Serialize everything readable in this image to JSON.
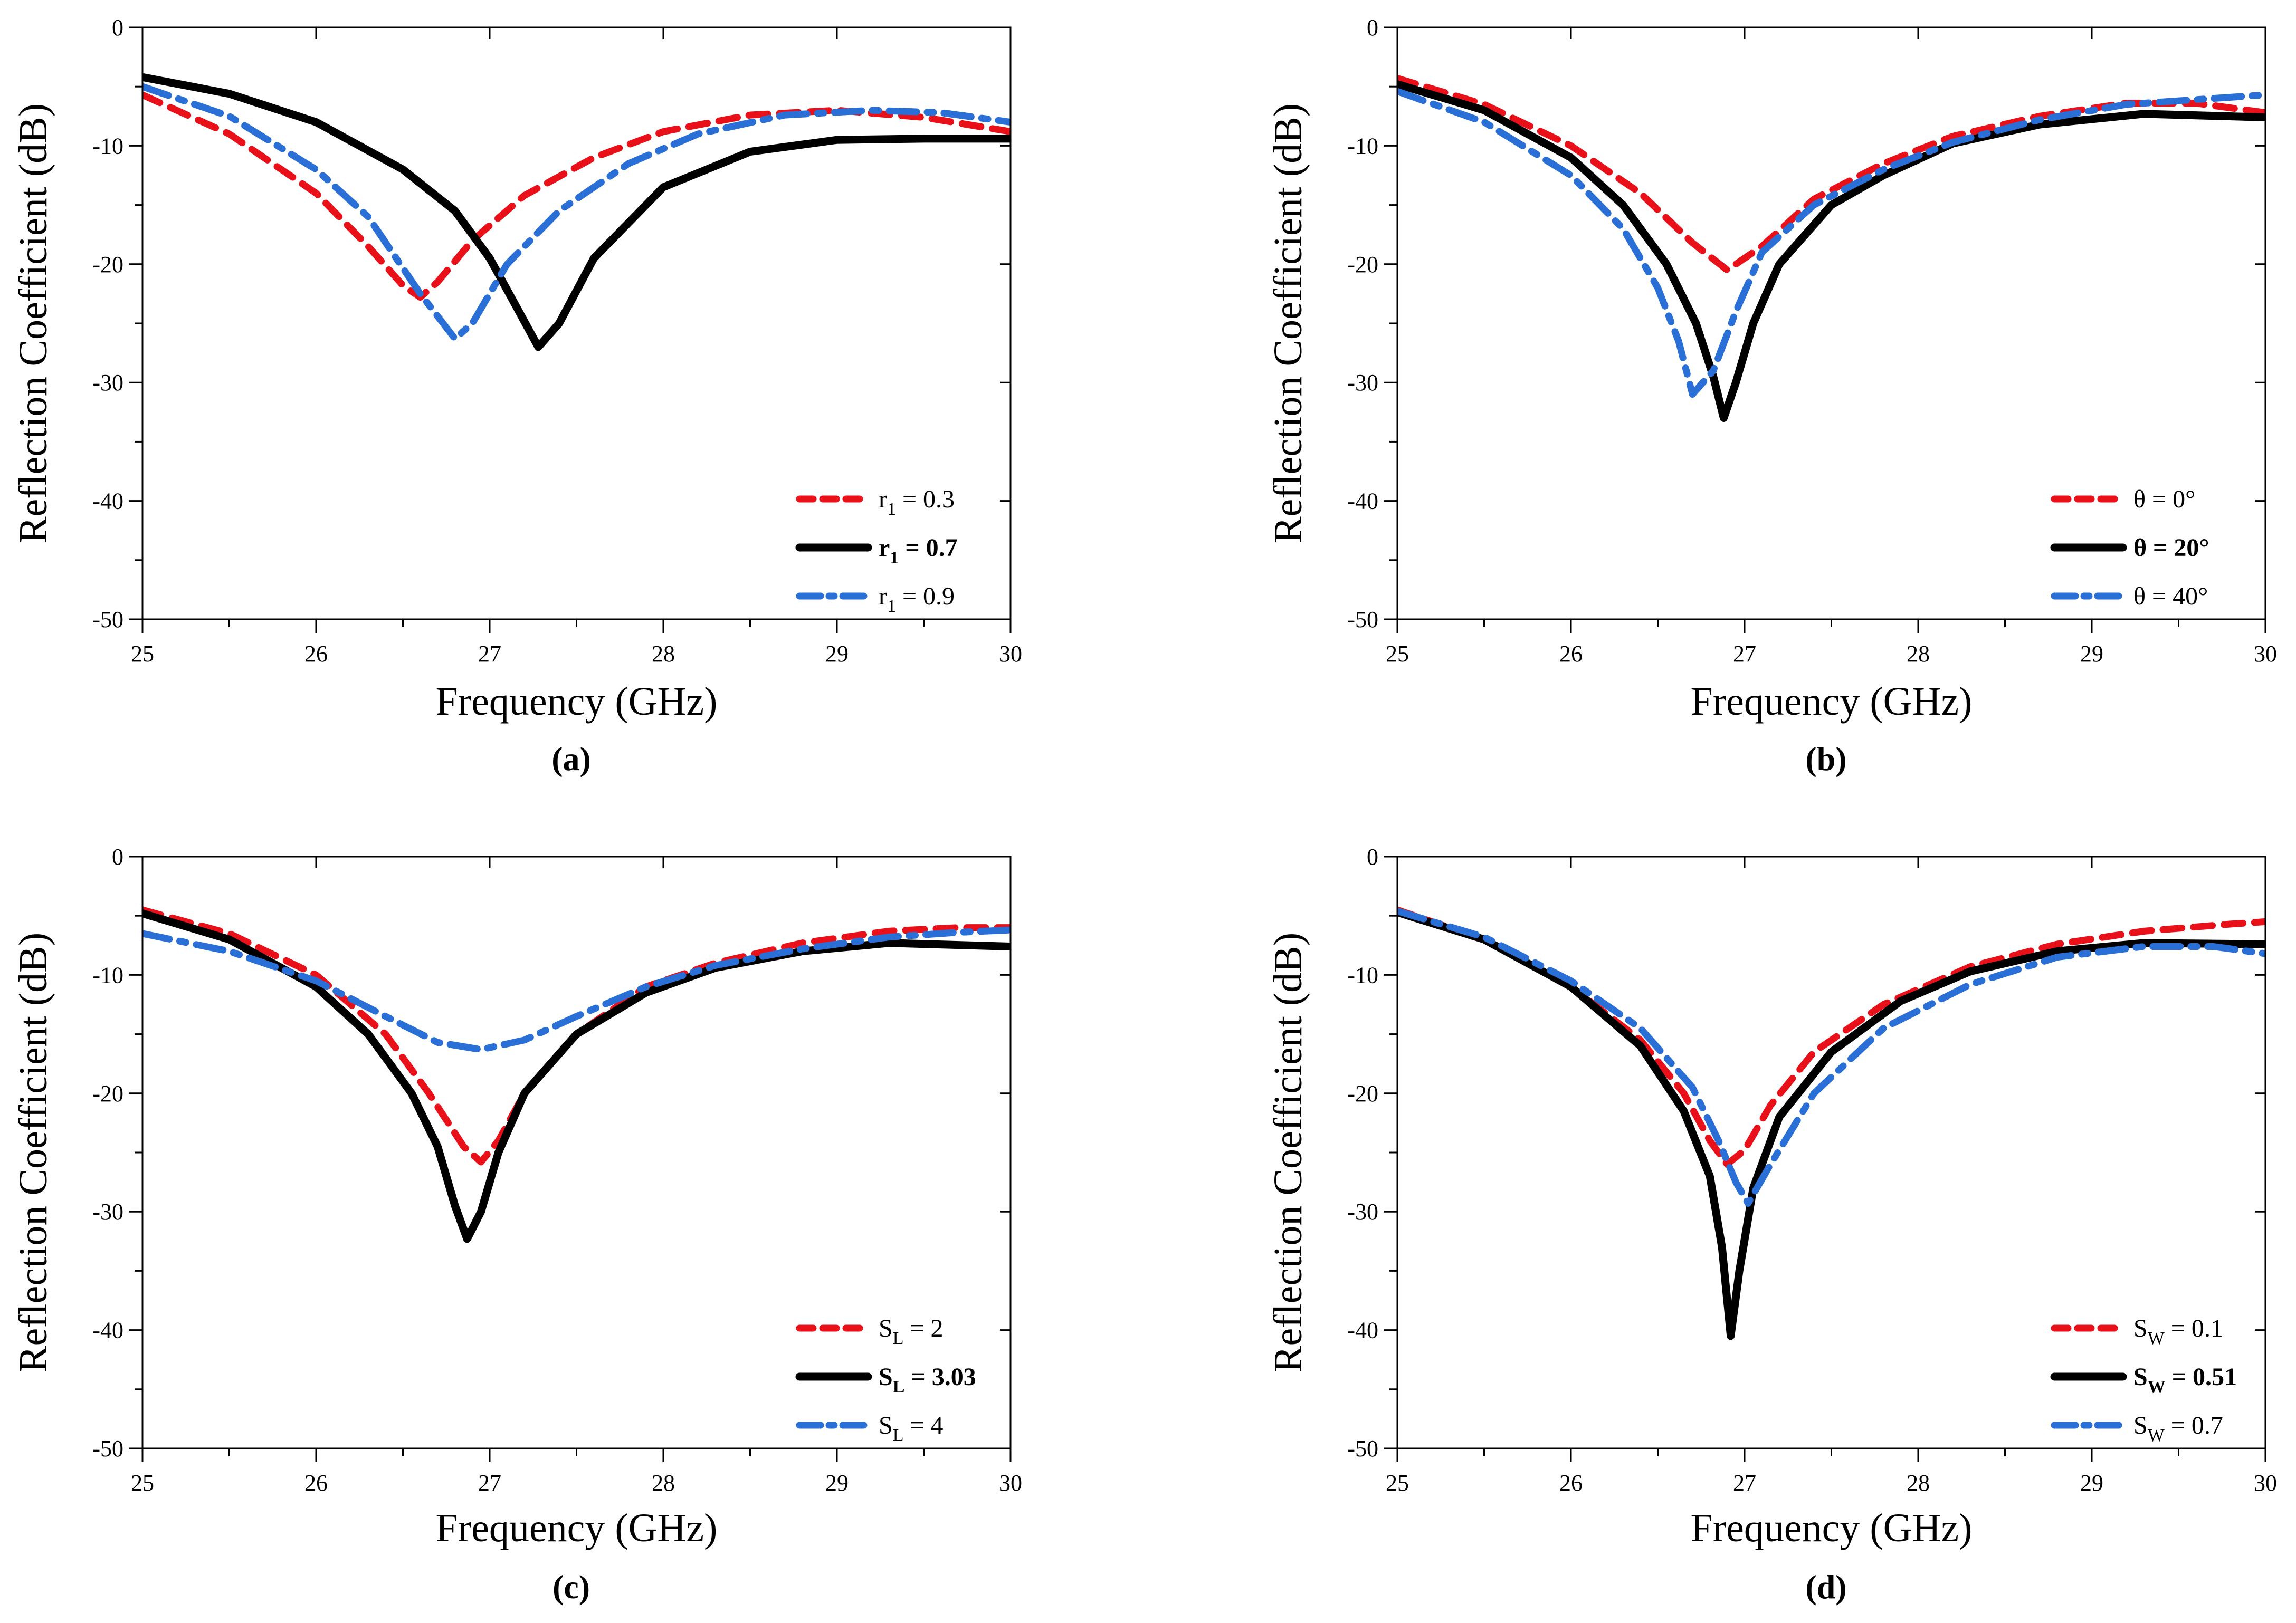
{
  "colors": {
    "red": "#e8111a",
    "black": "#000000",
    "blue": "#2a6fd6"
  },
  "chart_data": [
    {
      "type": "line",
      "panel": "(a)",
      "xlabel": "Frequency (GHz)",
      "ylabel": "Reflection Coefficient (dB)",
      "xlim": [
        25,
        30
      ],
      "ylim": [
        -50,
        0
      ],
      "xticks": [
        25,
        26,
        27,
        28,
        29,
        30
      ],
      "yticks": [
        0,
        -10,
        -20,
        -30,
        -40,
        -50
      ],
      "grid": false,
      "legend_position": "bottom-right",
      "series": [
        {
          "name": "r1 = 0.3",
          "base": "r",
          "sub": "1",
          "rest": " = 0.3",
          "bold": false,
          "color": "red",
          "dash": "dash",
          "x": [
            25,
            25.5,
            26,
            26.3,
            26.5,
            26.6,
            26.7,
            26.9,
            27.2,
            27.6,
            28,
            28.5,
            29,
            29.5,
            30
          ],
          "y": [
            -5.7,
            -9,
            -14,
            -18.5,
            -21.8,
            -22.8,
            -21.5,
            -18,
            -14.2,
            -11,
            -8.8,
            -7.4,
            -7,
            -7.6,
            -8.8
          ]
        },
        {
          "name": "r1 = 0.7",
          "base": "r",
          "sub": "1",
          "rest": " = 0.7",
          "bold": true,
          "color": "black",
          "dash": "solid",
          "x": [
            25,
            25.5,
            26,
            26.5,
            26.8,
            27,
            27.15,
            27.28,
            27.4,
            27.6,
            28,
            28.5,
            29,
            29.5,
            30
          ],
          "y": [
            -4.2,
            -5.6,
            -8,
            -12,
            -15.5,
            -19.5,
            -23.5,
            -27,
            -25,
            -19.5,
            -13.5,
            -10.5,
            -9.5,
            -9.4,
            -9.4
          ]
        },
        {
          "name": "r1 = 0.9",
          "base": "r",
          "sub": "1",
          "rest": " = 0.9",
          "bold": false,
          "color": "blue",
          "dash": "dashdot",
          "x": [
            25,
            25.5,
            26,
            26.3,
            26.6,
            26.8,
            26.9,
            27.1,
            27.4,
            27.8,
            28.2,
            28.7,
            29.2,
            29.6,
            30
          ],
          "y": [
            -5,
            -7.5,
            -12,
            -16,
            -22.5,
            -26.3,
            -25,
            -20,
            -15.5,
            -11.5,
            -9,
            -7.4,
            -7,
            -7.2,
            -8
          ]
        }
      ]
    },
    {
      "type": "line",
      "panel": "(b)",
      "xlabel": "Frequency (GHz)",
      "ylabel": "Reflection Coefficient (dB)",
      "xlim": [
        25,
        30
      ],
      "ylim": [
        -50,
        0
      ],
      "xticks": [
        25,
        26,
        27,
        28,
        29,
        30
      ],
      "yticks": [
        0,
        -10,
        -20,
        -30,
        -40,
        -50
      ],
      "grid": false,
      "legend_position": "bottom-right",
      "series": [
        {
          "name": "θ = 0°",
          "base": "θ = 0°",
          "sub": "",
          "rest": "",
          "bold": false,
          "color": "red",
          "dash": "dash",
          "x": [
            25,
            25.5,
            26,
            26.4,
            26.7,
            26.9,
            27.1,
            27.4,
            27.8,
            28.2,
            28.7,
            29.2,
            29.6,
            30
          ],
          "y": [
            -4.3,
            -6.5,
            -10,
            -14,
            -18.2,
            -20.5,
            -18.5,
            -14.5,
            -11.5,
            -9.2,
            -7.5,
            -6.4,
            -6.4,
            -7.2
          ]
        },
        {
          "name": "θ = 20°",
          "base": "θ = 20°",
          "sub": "",
          "rest": "",
          "bold": true,
          "color": "black",
          "dash": "solid",
          "x": [
            25,
            25.5,
            26,
            26.3,
            26.55,
            26.72,
            26.82,
            26.88,
            26.95,
            27.05,
            27.2,
            27.5,
            27.8,
            28.2,
            28.7,
            29.3,
            30
          ],
          "y": [
            -4.8,
            -7,
            -11,
            -15,
            -20,
            -25,
            -29.5,
            -33,
            -30,
            -25,
            -20,
            -15,
            -12.5,
            -9.8,
            -8.2,
            -7.3,
            -7.6
          ]
        },
        {
          "name": "θ = 40°",
          "base": "θ = 40°",
          "sub": "",
          "rest": "",
          "bold": false,
          "color": "blue",
          "dash": "dashdot",
          "x": [
            25,
            25.5,
            26,
            26.3,
            26.5,
            26.62,
            26.7,
            26.82,
            26.95,
            27.1,
            27.4,
            27.8,
            28.2,
            28.7,
            29.2,
            29.6,
            30
          ],
          "y": [
            -5.4,
            -8,
            -12.5,
            -17,
            -22,
            -26.5,
            -31,
            -29,
            -24,
            -19,
            -15,
            -12,
            -9.7,
            -7.8,
            -6.5,
            -6.1,
            -5.7
          ]
        }
      ]
    },
    {
      "type": "line",
      "panel": "(c)",
      "xlabel": "Frequency (GHz)",
      "ylabel": "Reflection Coefficient (dB)",
      "xlim": [
        25,
        30
      ],
      "ylim": [
        -50,
        0
      ],
      "xticks": [
        25,
        26,
        27,
        28,
        29,
        30
      ],
      "yticks": [
        0,
        -10,
        -20,
        -30,
        -40,
        -50
      ],
      "grid": false,
      "legend_position": "bottom-right",
      "series": [
        {
          "name": "SL = 2",
          "base": "S",
          "sub": "L",
          "rest": " = 2",
          "bold": false,
          "color": "red",
          "dash": "dash",
          "x": [
            25,
            25.5,
            26,
            26.4,
            26.65,
            26.85,
            26.95,
            27.05,
            27.2,
            27.5,
            27.9,
            28.3,
            28.8,
            29.3,
            29.7,
            30
          ],
          "y": [
            -4.5,
            -6.5,
            -10,
            -15,
            -20,
            -24.5,
            -25.8,
            -24,
            -20,
            -15,
            -11,
            -9,
            -7.3,
            -6.3,
            -6,
            -6
          ]
        },
        {
          "name": "SL = 3.03",
          "base": "S",
          "sub": "L",
          "rest": " = 3.03",
          "bold": true,
          "color": "black",
          "dash": "solid",
          "x": [
            25,
            25.5,
            26,
            26.3,
            26.55,
            26.7,
            26.8,
            26.87,
            26.95,
            27.05,
            27.2,
            27.5,
            27.9,
            28.3,
            28.8,
            29.3,
            30
          ],
          "y": [
            -4.8,
            -7,
            -11,
            -15,
            -20,
            -24.5,
            -29.5,
            -32.3,
            -30,
            -25,
            -20,
            -15,
            -11.5,
            -9.4,
            -8,
            -7.3,
            -7.6
          ]
        },
        {
          "name": "SL = 4",
          "base": "S",
          "sub": "L",
          "rest": " = 4",
          "bold": false,
          "color": "blue",
          "dash": "dashdot",
          "x": [
            25,
            25.5,
            26,
            26.4,
            26.7,
            26.95,
            27.2,
            27.5,
            27.9,
            28.3,
            28.8,
            29.3,
            29.7,
            30
          ],
          "y": [
            -6.5,
            -8,
            -10.5,
            -13.5,
            -15.7,
            -16.3,
            -15.5,
            -13.5,
            -11,
            -9.2,
            -7.8,
            -6.8,
            -6.4,
            -6.2
          ]
        }
      ]
    },
    {
      "type": "line",
      "panel": "(d)",
      "xlabel": "Frequency (GHz)",
      "ylabel": "Reflection Coefficient (dB)",
      "xlim": [
        25,
        30
      ],
      "ylim": [
        -50,
        0
      ],
      "xticks": [
        25,
        26,
        27,
        28,
        29,
        30
      ],
      "yticks": [
        0,
        -10,
        -20,
        -30,
        -40,
        -50
      ],
      "grid": false,
      "legend_position": "bottom-right",
      "series": [
        {
          "name": "SW = 0.1",
          "base": "S",
          "sub": "W",
          "rest": " = 0.1",
          "bold": false,
          "color": "red",
          "dash": "dash",
          "x": [
            25,
            25.5,
            26,
            26.4,
            26.65,
            26.8,
            26.9,
            27.0,
            27.15,
            27.4,
            27.8,
            28.3,
            28.8,
            29.3,
            29.8,
            30
          ],
          "y": [
            -4.5,
            -7,
            -11,
            -15.5,
            -20,
            -24,
            -26,
            -24.8,
            -21,
            -16.5,
            -12.5,
            -9.3,
            -7.4,
            -6.3,
            -5.7,
            -5.5
          ]
        },
        {
          "name": "SW = 0.51",
          "base": "S",
          "sub": "W",
          "rest": " = 0.51",
          "bold": true,
          "color": "black",
          "dash": "solid",
          "x": [
            25,
            25.5,
            26,
            26.4,
            26.65,
            26.8,
            26.87,
            26.92,
            26.97,
            27.05,
            27.2,
            27.5,
            27.9,
            28.3,
            28.8,
            29.3,
            30
          ],
          "y": [
            -4.7,
            -7,
            -11,
            -16,
            -21.5,
            -27,
            -33,
            -40.5,
            -35,
            -28,
            -22,
            -16.5,
            -12.2,
            -9.7,
            -8,
            -7.3,
            -7.4
          ]
        },
        {
          "name": "SW = 0.7",
          "base": "S",
          "sub": "W",
          "rest": " = 0.7",
          "bold": false,
          "color": "blue",
          "dash": "dashdot",
          "x": [
            25,
            25.5,
            26,
            26.4,
            26.7,
            26.85,
            26.95,
            27.02,
            27.15,
            27.4,
            27.8,
            28.3,
            28.8,
            29.3,
            29.7,
            30
          ],
          "y": [
            -4.6,
            -6.8,
            -10.5,
            -14.5,
            -19.5,
            -24,
            -27.5,
            -29.3,
            -26,
            -20,
            -14.5,
            -10.8,
            -8.5,
            -7.6,
            -7.6,
            -8.2
          ]
        }
      ]
    }
  ]
}
